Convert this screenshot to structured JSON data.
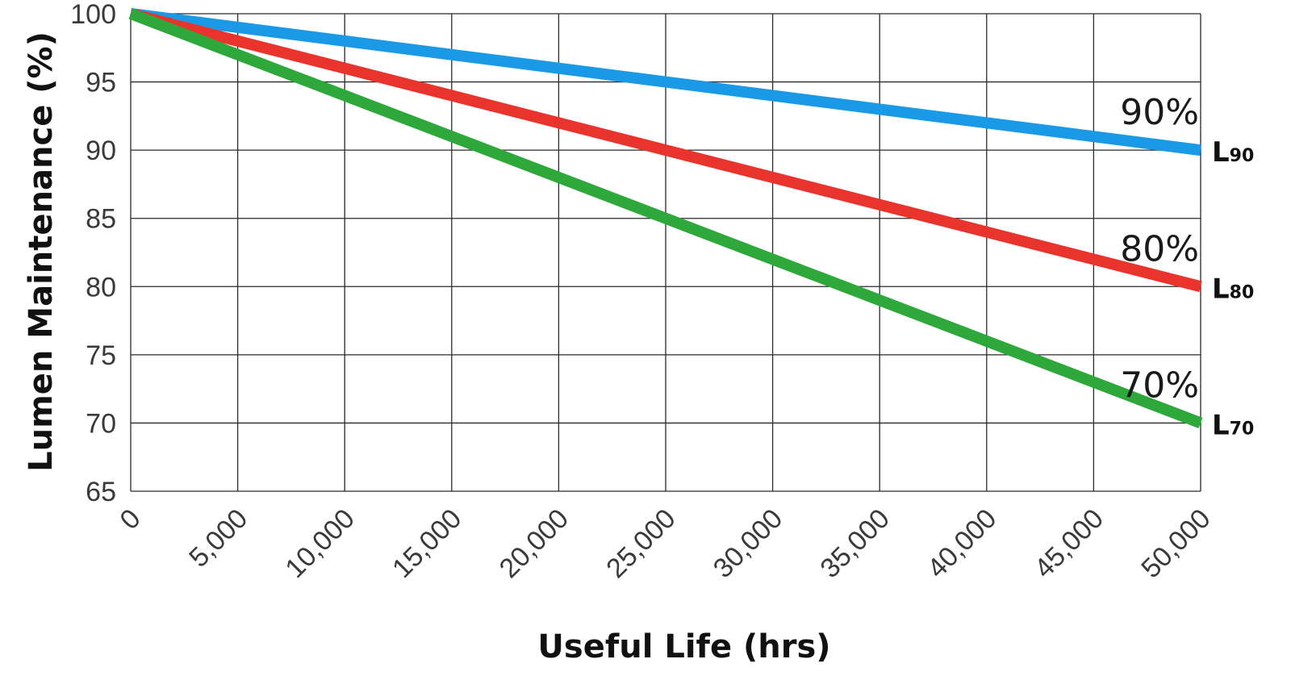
{
  "chart_data": {
    "type": "line",
    "title": "",
    "xlabel": "Useful Life (hrs)",
    "ylabel": "Lumen Maintenance (%)",
    "xlim": [
      0,
      50000
    ],
    "ylim": [
      65,
      100
    ],
    "x_ticks": [
      "0",
      "5,000",
      "10,000",
      "15,000",
      "20,000",
      "25,000",
      "30,000",
      "35,000",
      "40,000",
      "45,000",
      "50,000"
    ],
    "y_ticks": [
      "65",
      "70",
      "75",
      "80",
      "85",
      "90",
      "95",
      "100"
    ],
    "grid": true,
    "series": [
      {
        "color": "#1a9ae6",
        "x": [
          0,
          50000
        ],
        "y": [
          100,
          90
        ],
        "end_label": "90%",
        "tag_main": "L",
        "tag_sub": "90"
      },
      {
        "color": "#e8342c",
        "x": [
          0,
          50000
        ],
        "y": [
          100,
          80
        ],
        "end_label": "80%",
        "tag_main": "L",
        "tag_sub": "80"
      },
      {
        "color": "#2ea83a",
        "x": [
          0,
          50000
        ],
        "y": [
          100,
          70
        ],
        "end_label": "70%",
        "tag_main": "L",
        "tag_sub": "70"
      }
    ]
  }
}
